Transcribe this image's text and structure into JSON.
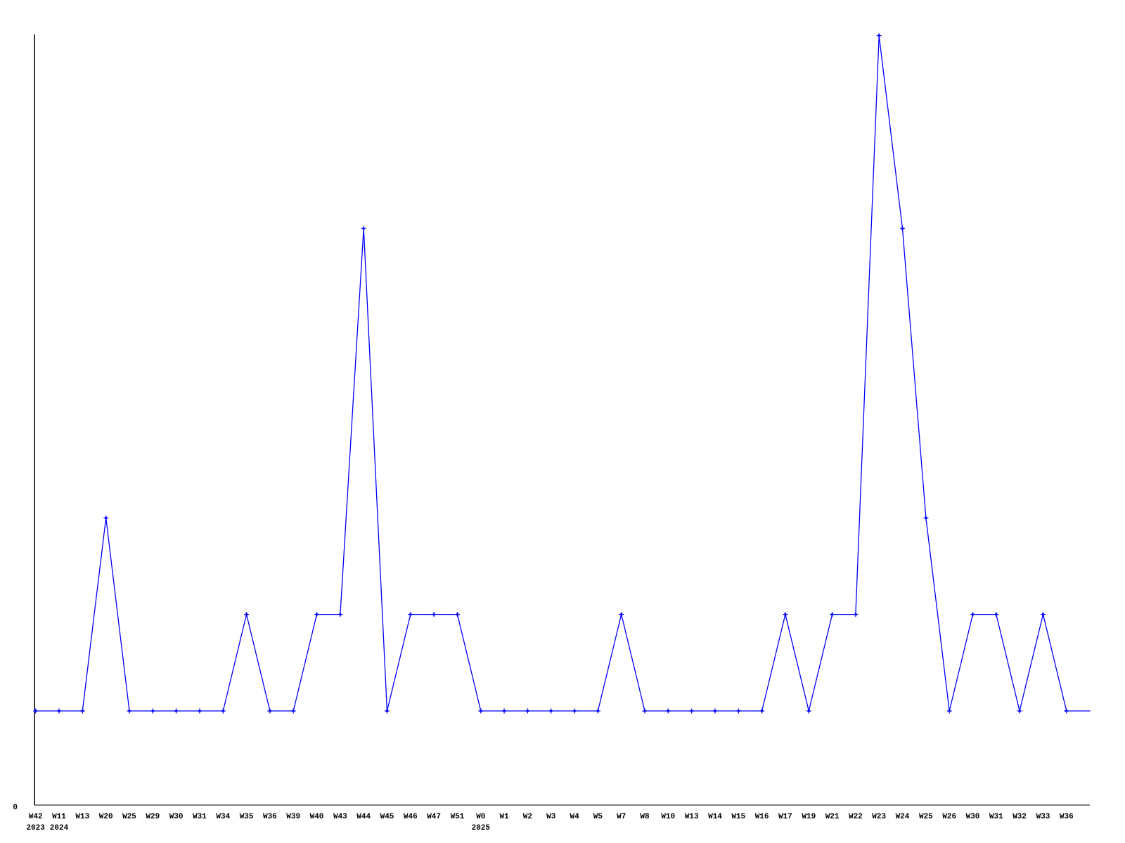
{
  "chart_data": {
    "type": "line",
    "title": "",
    "xlabel": "",
    "ylabel": "",
    "categories": [
      "W42",
      "W11",
      "W13",
      "W20",
      "W25",
      "W29",
      "W30",
      "W31",
      "W34",
      "W35",
      "W36",
      "W39",
      "W40",
      "W43",
      "W44",
      "W45",
      "W46",
      "W47",
      "W51",
      "W0",
      "W1",
      "W2",
      "W3",
      "W4",
      "W5",
      "W7",
      "W8",
      "W10",
      "W13",
      "W14",
      "W15",
      "W16",
      "W17",
      "W19",
      "W21",
      "W22",
      "W23",
      "W24",
      "W25",
      "W26",
      "W30",
      "W31",
      "W32",
      "W33",
      "W36"
    ],
    "values": [
      1,
      1,
      1,
      3,
      1,
      1,
      1,
      1,
      1,
      2,
      1,
      1,
      2,
      2,
      6,
      1,
      2,
      2,
      2,
      1,
      1,
      1,
      1,
      1,
      1,
      2,
      1,
      1,
      1,
      1,
      1,
      1,
      2,
      1,
      2,
      2,
      8,
      6,
      3,
      1,
      2,
      2,
      1,
      2,
      1
    ],
    "year_markers": [
      {
        "index": 0,
        "label": "2023"
      },
      {
        "index": 1,
        "label": "2024"
      },
      {
        "index": 19,
        "label": "2025"
      }
    ],
    "y_axis": {
      "min_label": "0",
      "min": 0,
      "max": 8
    },
    "ylim": [
      0,
      8
    ],
    "grid": false,
    "legend": false,
    "line_color": "#0000ff",
    "marker": "plus",
    "axis_color": "#000000",
    "text_color": "#000000"
  }
}
